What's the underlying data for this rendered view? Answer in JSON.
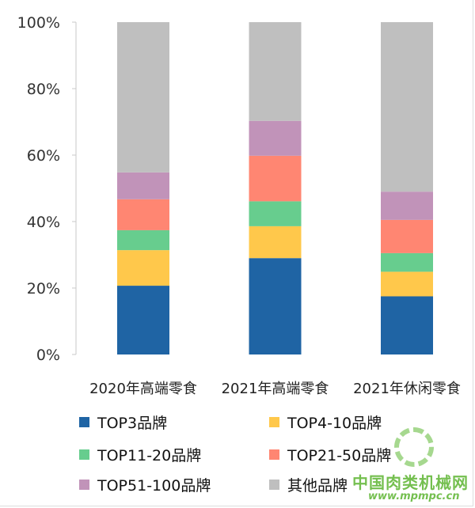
{
  "chart_data": {
    "type": "bar",
    "stacked": true,
    "title": "",
    "xlabel": "",
    "ylabel": "",
    "ylim": [
      0,
      100
    ],
    "yticks": [
      "0%",
      "20%",
      "40%",
      "60%",
      "80%",
      "100%"
    ],
    "categories": [
      "2020年高端零食",
      "2021年高端零食",
      "2021年休闲零食"
    ],
    "series": [
      {
        "name": "TOP3品牌",
        "color": "#1f64a4",
        "values": [
          20.7,
          29.0,
          17.5
        ]
      },
      {
        "name": "TOP4-10品牌",
        "color": "#ffc84b",
        "values": [
          10.7,
          9.6,
          7.4
        ]
      },
      {
        "name": "TOP11-20品牌",
        "color": "#67cd8e",
        "values": [
          6.0,
          7.5,
          5.6
        ]
      },
      {
        "name": "TOP21-50品牌",
        "color": "#ff8672",
        "values": [
          9.3,
          13.7,
          10.0
        ]
      },
      {
        "name": "TOP51-100品牌",
        "color": "#c193b9",
        "values": [
          8.1,
          10.5,
          8.5
        ]
      },
      {
        "name": "其他品牌",
        "color": "#bfbfbf",
        "values": [
          45.2,
          29.7,
          51.0
        ]
      }
    ],
    "legend_position": "bottom",
    "grid": false
  },
  "watermark": {
    "name": "中国肉类机械网",
    "url": "www.mpmpc.cn"
  }
}
